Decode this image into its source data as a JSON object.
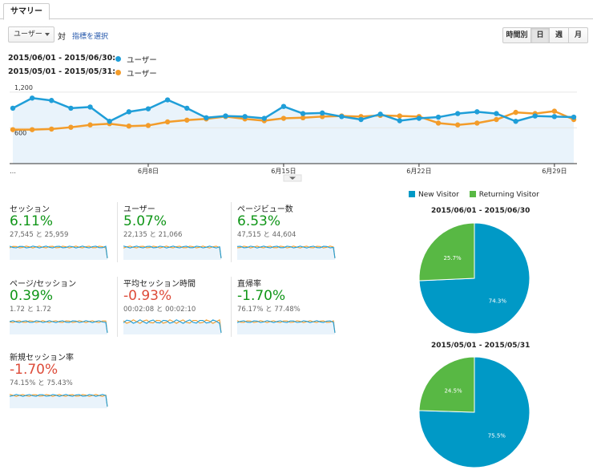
{
  "tabs": {
    "summary": "サマリー"
  },
  "controls": {
    "metric_select": "ユーザー",
    "vs": "対",
    "select_metric_link": "指標を選択",
    "granularity": {
      "hour": "時間別",
      "day": "日",
      "week": "週",
      "month": "月"
    },
    "active_granularity": "day"
  },
  "legend": {
    "current": {
      "range": "2015/06/01 - 2015/06/30:",
      "series": "ユーザー",
      "color": "#1f9ed8"
    },
    "previous": {
      "range": "2015/05/01 - 2015/05/31:",
      "series": "ユーザー",
      "color": "#f39c2a"
    }
  },
  "chart_data": [
    {
      "type": "line",
      "y_ticks": [
        "1,200",
        "600"
      ],
      "ylim": [
        0,
        1400
      ],
      "x_ticks": [
        "…",
        "6月8日",
        "6月15日",
        "6月22日",
        "6月29日"
      ],
      "series": [
        {
          "name": "ユーザー",
          "range": "2015/06/01 - 2015/06/30",
          "color": "#1f9ed8",
          "values": [
            930,
            1100,
            1060,
            930,
            950,
            710,
            870,
            920,
            1070,
            930,
            770,
            800,
            790,
            760,
            960,
            840,
            850,
            790,
            740,
            830,
            720,
            760,
            780,
            840,
            870,
            840,
            710,
            800,
            790,
            780
          ]
        },
        {
          "name": "ユーザー",
          "range": "2015/05/01 - 2015/05/31",
          "color": "#f39c2a",
          "values": [
            570,
            570,
            580,
            610,
            650,
            670,
            630,
            640,
            700,
            730,
            750,
            790,
            750,
            720,
            760,
            770,
            790,
            800,
            790,
            810,
            800,
            790,
            680,
            650,
            680,
            740,
            860,
            840,
            880,
            740
          ]
        }
      ]
    }
  ],
  "scorecards": [
    {
      "title": "セッション",
      "value": "6.11%",
      "sign": "pos",
      "compare": "27,545 と 25,959"
    },
    {
      "title": "ユーザー",
      "value": "5.07%",
      "sign": "pos",
      "compare": "22,135 と 21,066"
    },
    {
      "title": "ページビュー数",
      "value": "6.53%",
      "sign": "pos",
      "compare": "47,515 と 44,604"
    },
    {
      "title": "ページ/セッション",
      "value": "0.39%",
      "sign": "pos",
      "compare": "1.72 と 1.72"
    },
    {
      "title": "平均セッション時間",
      "value": "-0.93%",
      "sign": "neg",
      "compare": "00:02:08 と 00:02:10"
    },
    {
      "title": "直帰率",
      "value": "-1.70%",
      "sign": "pos",
      "compare": "76.17% と 77.48%"
    },
    {
      "title": "新規セッション率",
      "value": "-1.70%",
      "sign": "neg",
      "compare": "74.15% と 75.43%"
    }
  ],
  "pies": {
    "legend": [
      {
        "label": "New Visitor",
        "color": "#0099c6"
      },
      {
        "label": "Returning Visitor",
        "color": "#58b844"
      }
    ],
    "charts": [
      {
        "title": "2015/06/01 - 2015/06/30",
        "new_pct": 74.3,
        "returning_pct": 25.7,
        "new_label": "74.3%",
        "returning_label": "25.7%"
      },
      {
        "title": "2015/05/01 - 2015/05/31",
        "new_pct": 75.5,
        "returning_pct": 24.5,
        "new_label": "75.5%",
        "returning_label": "24.5%"
      }
    ]
  }
}
